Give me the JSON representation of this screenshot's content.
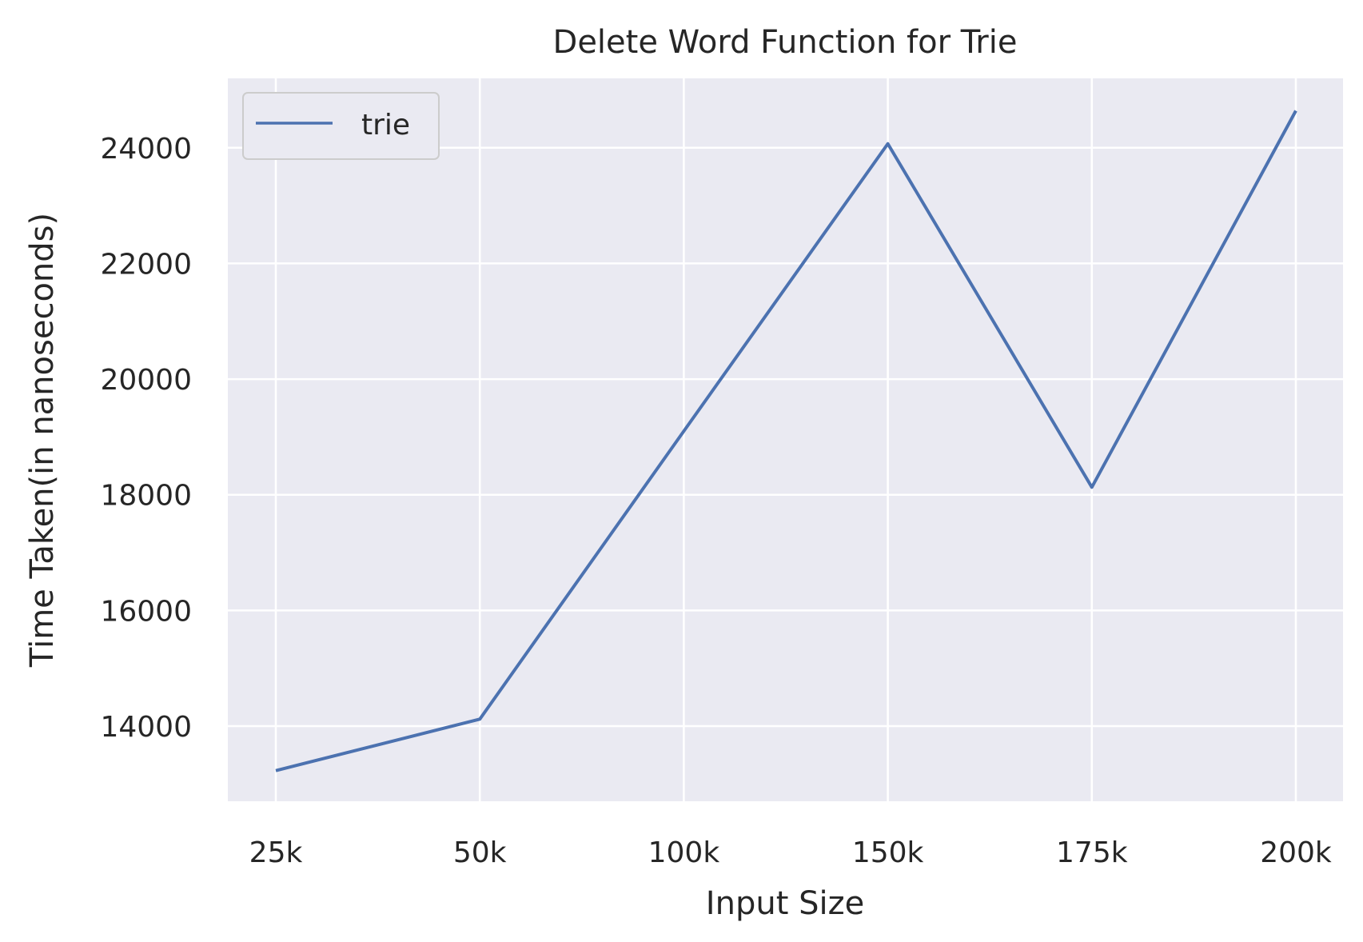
{
  "chart_data": {
    "type": "line",
    "title": "Delete Word Function for Trie",
    "xlabel": "Input Size",
    "ylabel": "Time Taken(in nanoseconds)",
    "categories": [
      "25k",
      "50k",
      "100k",
      "150k",
      "175k",
      "200k"
    ],
    "series": [
      {
        "name": "trie",
        "values": [
          13230,
          14120,
          19100,
          24070,
          18130,
          24640
        ],
        "color": "#4c72b0"
      }
    ],
    "ylim": [
      12700,
      25200
    ],
    "yticks": [
      14000,
      16000,
      18000,
      20000,
      22000,
      24000
    ],
    "grid": true,
    "legend": "top-left",
    "colors": {
      "background": "#eaeaf2",
      "grid": "#ffffff",
      "text": "#262626"
    }
  }
}
